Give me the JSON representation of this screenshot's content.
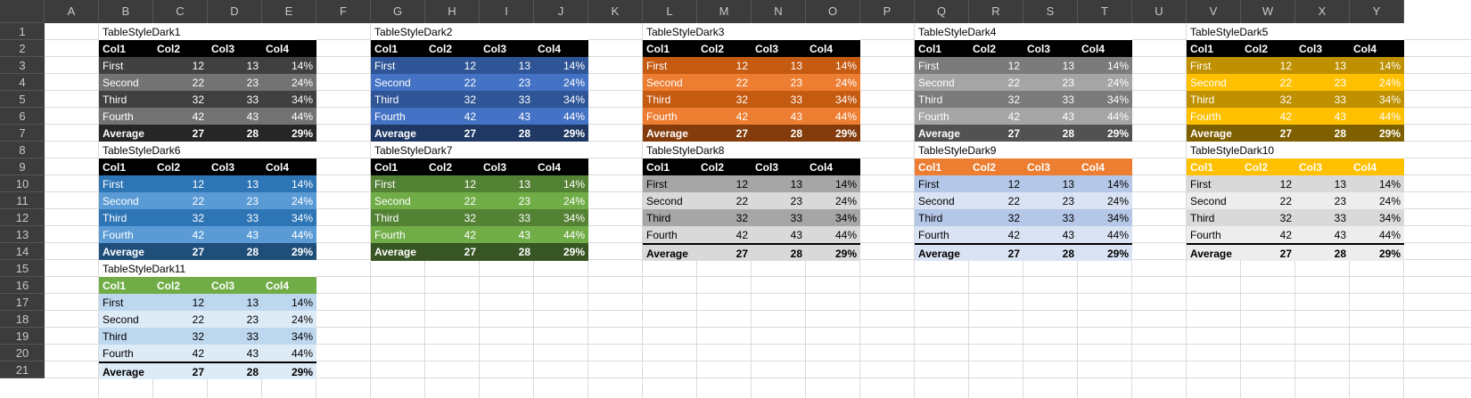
{
  "columns": [
    "A",
    "B",
    "C",
    "D",
    "E",
    "F",
    "G",
    "H",
    "I",
    "J",
    "K",
    "L",
    "M",
    "N",
    "O",
    "P",
    "Q",
    "R",
    "S",
    "T",
    "U",
    "V",
    "W",
    "X",
    "Y"
  ],
  "rows": [
    "1",
    "2",
    "3",
    "4",
    "5",
    "6",
    "7",
    "8",
    "9",
    "10",
    "11",
    "12",
    "13",
    "14",
    "15",
    "16",
    "17",
    "18",
    "19",
    "20",
    "21"
  ],
  "headers": [
    "Col1",
    "Col2",
    "Col3",
    "Col4"
  ],
  "body": [
    [
      "First",
      "12",
      "13",
      "14%"
    ],
    [
      "Second",
      "22",
      "23",
      "24%"
    ],
    [
      "Third",
      "32",
      "33",
      "34%"
    ],
    [
      "Fourth",
      "42",
      "43",
      "44%"
    ]
  ],
  "total": [
    "Average",
    "27",
    "28",
    "29%"
  ],
  "tables": [
    {
      "name": "TableStyleDark1",
      "col": 1,
      "row": 0,
      "hdr_bg": "#000000",
      "hdr_fg": "#ffffff",
      "odd_bg": "#404040",
      "even_bg": "#737373",
      "body_fg": "#ffffff",
      "tot_bg": "#262626",
      "tot_fg": "#ffffff",
      "tot_border": false
    },
    {
      "name": "TableStyleDark2",
      "col": 6,
      "row": 0,
      "hdr_bg": "#000000",
      "hdr_fg": "#ffffff",
      "odd_bg": "#2f5597",
      "even_bg": "#4472c4",
      "body_fg": "#ffffff",
      "tot_bg": "#1f3864",
      "tot_fg": "#ffffff",
      "tot_border": false
    },
    {
      "name": "TableStyleDark3",
      "col": 11,
      "row": 0,
      "hdr_bg": "#000000",
      "hdr_fg": "#ffffff",
      "odd_bg": "#c55a11",
      "even_bg": "#ed7d31",
      "body_fg": "#ffffff",
      "tot_bg": "#843c0c",
      "tot_fg": "#ffffff",
      "tot_border": false
    },
    {
      "name": "TableStyleDark4",
      "col": 16,
      "row": 0,
      "hdr_bg": "#000000",
      "hdr_fg": "#ffffff",
      "odd_bg": "#7b7b7b",
      "even_bg": "#a5a5a5",
      "body_fg": "#ffffff",
      "tot_bg": "#525252",
      "tot_fg": "#ffffff",
      "tot_border": false
    },
    {
      "name": "TableStyleDark5",
      "col": 21,
      "row": 0,
      "hdr_bg": "#000000",
      "hdr_fg": "#ffffff",
      "odd_bg": "#bf9000",
      "even_bg": "#ffc000",
      "body_fg": "#ffffff",
      "tot_bg": "#7f6000",
      "tot_fg": "#ffffff",
      "tot_border": false
    },
    {
      "name": "TableStyleDark6",
      "col": 1,
      "row": 7,
      "hdr_bg": "#000000",
      "hdr_fg": "#ffffff",
      "odd_bg": "#2e75b6",
      "even_bg": "#5b9bd5",
      "body_fg": "#ffffff",
      "tot_bg": "#1f4e79",
      "tot_fg": "#ffffff",
      "tot_border": false
    },
    {
      "name": "TableStyleDark7",
      "col": 6,
      "row": 7,
      "hdr_bg": "#000000",
      "hdr_fg": "#ffffff",
      "odd_bg": "#548235",
      "even_bg": "#70ad47",
      "body_fg": "#ffffff",
      "tot_bg": "#375623",
      "tot_fg": "#ffffff",
      "tot_border": false
    },
    {
      "name": "TableStyleDark8",
      "col": 11,
      "row": 7,
      "hdr_bg": "#000000",
      "hdr_fg": "#ffffff",
      "odd_bg": "#a6a6a6",
      "even_bg": "#d9d9d9",
      "body_fg": "#000000",
      "tot_bg": "#d9d9d9",
      "tot_fg": "#000000",
      "tot_border": true
    },
    {
      "name": "TableStyleDark9",
      "col": 16,
      "row": 7,
      "hdr_bg": "#ed7d31",
      "hdr_fg": "#ffffff",
      "odd_bg": "#b4c7e7",
      "even_bg": "#dae3f3",
      "body_fg": "#000000",
      "tot_bg": "#dae3f3",
      "tot_fg": "#000000",
      "tot_border": true
    },
    {
      "name": "TableStyleDark10",
      "col": 21,
      "row": 7,
      "hdr_bg": "#ffc000",
      "hdr_fg": "#ffffff",
      "odd_bg": "#d9d9d9",
      "even_bg": "#ededed",
      "body_fg": "#000000",
      "tot_bg": "#ededed",
      "tot_fg": "#000000",
      "tot_border": true
    },
    {
      "name": "TableStyleDark11",
      "col": 1,
      "row": 14,
      "hdr_bg": "#70ad47",
      "hdr_fg": "#ffffff",
      "odd_bg": "#bdd7ee",
      "even_bg": "#ddebf7",
      "body_fg": "#000000",
      "tot_bg": "#ddebf7",
      "tot_fg": "#000000",
      "tot_border": true
    }
  ]
}
